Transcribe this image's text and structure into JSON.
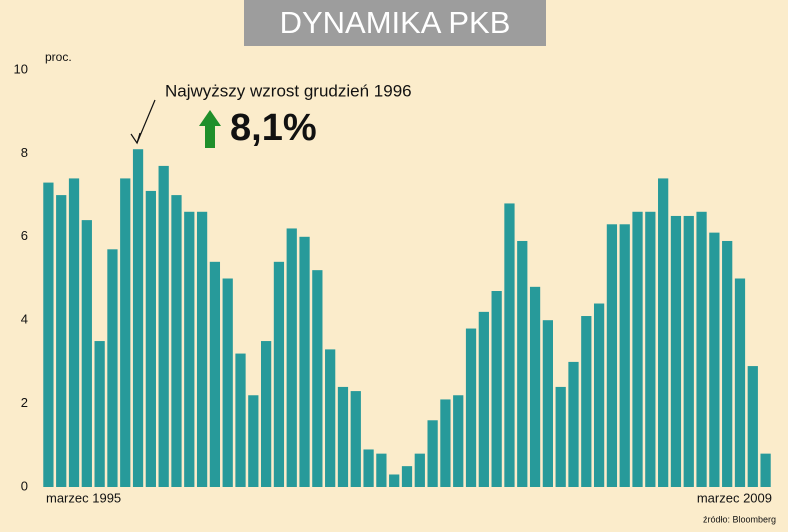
{
  "chart_data": {
    "type": "bar",
    "title": "DYNAMIKA PKB",
    "y_label": "proc.",
    "source": "źródło: Bloomberg",
    "annotation": "Najwyższy wzrost grudzień 1996",
    "categories": [
      "marzec 1995",
      null,
      null,
      null,
      null,
      null,
      null,
      null,
      null,
      null,
      null,
      null,
      null,
      null,
      null,
      null,
      null,
      null,
      null,
      null,
      null,
      null,
      null,
      null,
      null,
      null,
      null,
      null,
      null,
      null,
      null,
      null,
      null,
      null,
      null,
      null,
      null,
      null,
      null,
      null,
      null,
      null,
      null,
      null,
      null,
      null,
      null,
      null,
      null,
      null,
      null,
      null,
      null,
      null,
      null,
      null,
      "marzec 2009"
    ],
    "values": [
      7.3,
      7.0,
      7.4,
      6.4,
      3.5,
      5.7,
      7.4,
      8.1,
      7.1,
      7.7,
      7.0,
      6.6,
      6.6,
      5.4,
      5.0,
      3.2,
      2.2,
      3.5,
      5.4,
      6.2,
      6.0,
      5.2,
      3.3,
      2.4,
      2.3,
      0.9,
      0.8,
      0.3,
      0.5,
      0.8,
      1.6,
      2.1,
      2.2,
      3.8,
      4.2,
      4.7,
      6.8,
      5.9,
      4.8,
      4.0,
      2.4,
      3.0,
      4.1,
      4.4,
      6.3,
      6.3,
      6.6,
      6.6,
      7.4,
      6.5,
      6.5,
      6.6,
      6.1,
      5.9,
      5.0,
      2.9,
      0.8
    ],
    "value_labels": [
      null,
      null,
      null,
      null,
      null,
      null,
      null,
      "8,1%",
      null,
      null,
      null,
      null,
      null,
      null,
      null,
      null,
      null,
      null,
      null,
      null,
      null,
      null,
      null,
      null,
      null,
      null,
      null,
      null,
      null,
      null,
      null,
      null,
      null,
      null,
      null,
      null,
      null,
      null,
      null,
      null,
      null,
      null,
      null,
      null,
      null,
      null,
      null,
      null,
      null,
      null,
      null,
      null,
      null,
      null,
      null,
      null,
      null
    ],
    "color": "#279a9a",
    "ylim": [
      0,
      10
    ],
    "yticks": [
      0,
      2,
      4,
      6,
      8,
      10
    ],
    "grid": false
  }
}
